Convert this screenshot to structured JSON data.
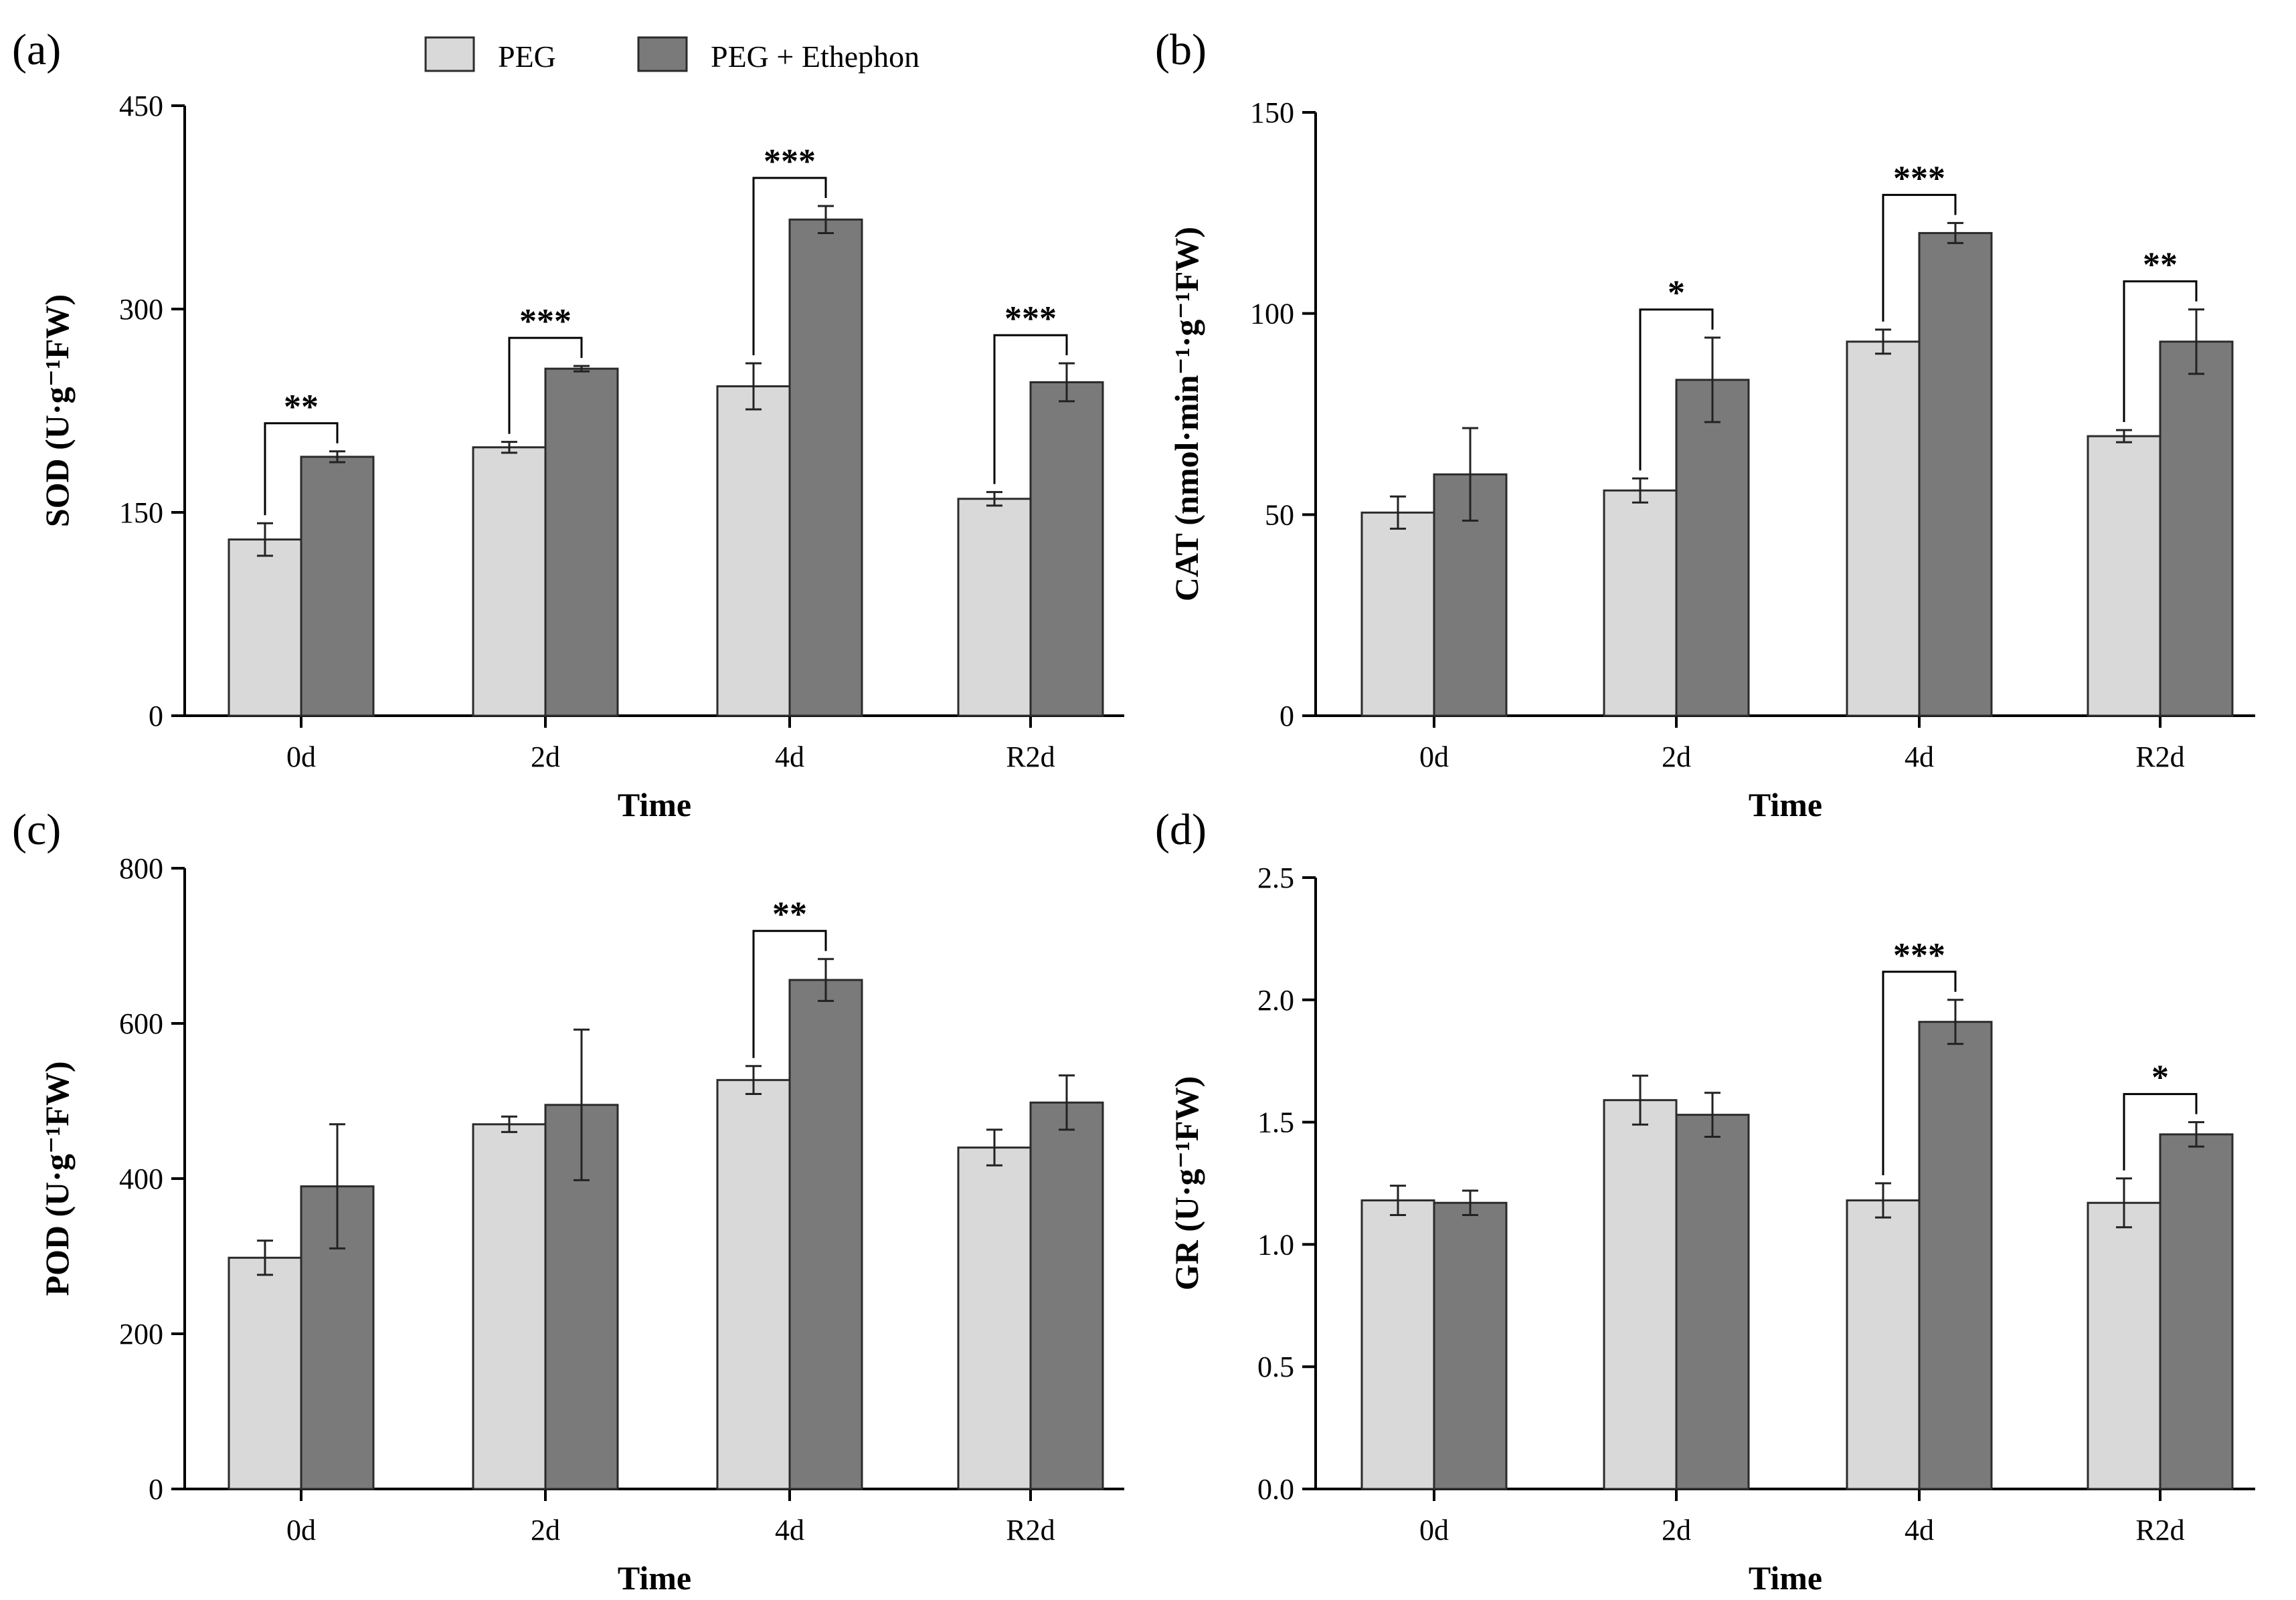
{
  "legend": {
    "position": "top-center",
    "items": [
      {
        "label": "PEG",
        "color": "#d9d9d9"
      },
      {
        "label": "PEG + Ethephon",
        "color": "#7a7a7a"
      }
    ]
  },
  "colors": {
    "peg": "#d9d9d9",
    "ethephon": "#7a7a7a",
    "stroke": "#2b2b2b"
  },
  "chart_data": [
    {
      "panel": "(a)",
      "type": "bar",
      "categories": [
        "0d",
        "2d",
        "4d",
        "R2d"
      ],
      "xlabel": "Time",
      "ylabel": "SOD (U·g⁻¹FW)",
      "ylim": [
        0,
        450
      ],
      "yticks": [
        0,
        150,
        300,
        450
      ],
      "ytick_labels": [
        "0",
        "150",
        "300",
        "450"
      ],
      "series": [
        {
          "name": "PEG",
          "values": [
            130,
            198,
            243,
            160
          ],
          "errors": [
            12,
            4,
            17,
            5
          ]
        },
        {
          "name": "PEG + Ethephon",
          "values": [
            191,
            256,
            366,
            246
          ],
          "errors": [
            4,
            2,
            10,
            14
          ]
        }
      ],
      "significance": [
        {
          "category": "0d",
          "label": "**"
        },
        {
          "category": "2d",
          "label": "***"
        },
        {
          "category": "4d",
          "label": "***"
        },
        {
          "category": "R2d",
          "label": "***"
        }
      ]
    },
    {
      "panel": "(b)",
      "type": "bar",
      "categories": [
        "0d",
        "2d",
        "4d",
        "R2d"
      ],
      "xlabel": "Time",
      "ylabel": "CAT (nmol·min⁻¹·g⁻¹FW)",
      "ylim": [
        0,
        150
      ],
      "yticks": [
        0,
        50,
        100,
        150
      ],
      "ytick_labels": [
        "0",
        "50",
        "100",
        "150"
      ],
      "series": [
        {
          "name": "PEG",
          "values": [
            50.5,
            56,
            93,
            69.5
          ],
          "errors": [
            4,
            3,
            3,
            1.5
          ]
        },
        {
          "name": "PEG + Ethephon",
          "values": [
            60,
            83.5,
            120,
            93
          ],
          "errors": [
            11.5,
            10.5,
            2.5,
            8
          ]
        }
      ],
      "significance": [
        {
          "category": "2d",
          "label": "*"
        },
        {
          "category": "4d",
          "label": "***"
        },
        {
          "category": "R2d",
          "label": "**"
        }
      ]
    },
    {
      "panel": "(c)",
      "type": "bar",
      "categories": [
        "0d",
        "2d",
        "4d",
        "R2d"
      ],
      "xlabel": "Time",
      "ylabel": "POD (U·g⁻¹FW)",
      "ylim": [
        0,
        800
      ],
      "yticks": [
        0,
        200,
        400,
        600,
        800
      ],
      "ytick_labels": [
        "0",
        "200",
        "400",
        "600",
        "800"
      ],
      "series": [
        {
          "name": "PEG",
          "values": [
            298,
            470,
            527,
            440
          ],
          "errors": [
            22,
            10,
            18,
            23
          ]
        },
        {
          "name": "PEG + Ethephon",
          "values": [
            390,
            495,
            656,
            498
          ],
          "errors": [
            80,
            97,
            27,
            35
          ]
        }
      ],
      "significance": [
        {
          "category": "4d",
          "label": "**"
        }
      ]
    },
    {
      "panel": "(d)",
      "type": "bar",
      "categories": [
        "0d",
        "2d",
        "4d",
        "R2d"
      ],
      "xlabel": "Time",
      "ylabel": "GR (U·g⁻¹FW)",
      "ylim": [
        0,
        2.5
      ],
      "yticks": [
        0,
        0.5,
        1.0,
        1.5,
        2.0,
        2.5
      ],
      "ytick_labels": [
        "0.0",
        "0.5",
        "1.0",
        "1.5",
        "2.0",
        "2.5"
      ],
      "series": [
        {
          "name": "PEG",
          "values": [
            1.18,
            1.59,
            1.18,
            1.17
          ],
          "errors": [
            0.06,
            0.1,
            0.07,
            0.1
          ]
        },
        {
          "name": "PEG + Ethephon",
          "values": [
            1.17,
            1.53,
            1.91,
            1.45
          ],
          "errors": [
            0.05,
            0.09,
            0.09,
            0.05
          ]
        }
      ],
      "significance": [
        {
          "category": "4d",
          "label": "***"
        },
        {
          "category": "R2d",
          "label": "*"
        }
      ]
    }
  ]
}
